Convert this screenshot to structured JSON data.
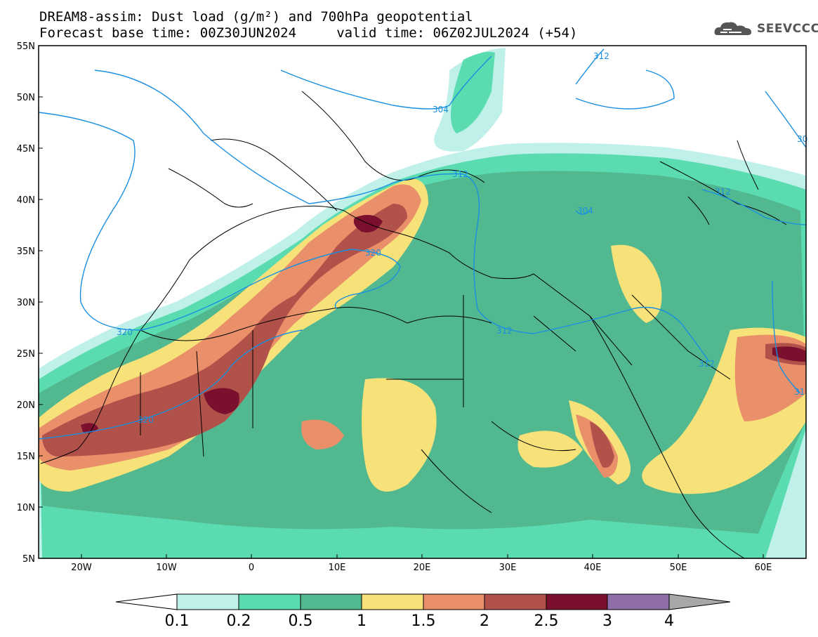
{
  "title_line1": "DREAM8-assim: Dust load (g/m²) and 700hPa geopotential",
  "title_line2": "Forecast base time: 00Z30JUN2024     valid time: 06Z02JUL2024 (+54)",
  "logo": {
    "text": "SEEVCCC",
    "icon": "cloud-logo-icon"
  },
  "map": {
    "lon_range": [
      -25,
      65
    ],
    "lat_range": [
      5,
      55
    ],
    "lon_ticks": [
      "20W",
      "10W",
      "0",
      "10E",
      "20E",
      "30E",
      "40E",
      "50E",
      "60E"
    ],
    "lat_ticks": [
      "55N",
      "50N",
      "45N",
      "40N",
      "35N",
      "30N",
      "25N",
      "20N",
      "15N",
      "10N",
      "5N"
    ],
    "contour_labels": [
      "312",
      "304",
      "320",
      "312",
      "312",
      "304",
      "320",
      "312",
      "320",
      "312",
      "31",
      "30"
    ]
  },
  "colorbar": {
    "labels": [
      "0.1",
      "0.2",
      "0.5",
      "1",
      "1.5",
      "2",
      "2.5",
      "3",
      "4"
    ],
    "colors": [
      "#bff0ea",
      "#5bdcb0",
      "#52b890",
      "#f7e27a",
      "#e9906a",
      "#b0524a",
      "#7a0f2e",
      "#8f6ea8",
      "#a8a8a8"
    ]
  },
  "colors": {
    "contour": "#1a8fe0",
    "border": "#000000"
  }
}
